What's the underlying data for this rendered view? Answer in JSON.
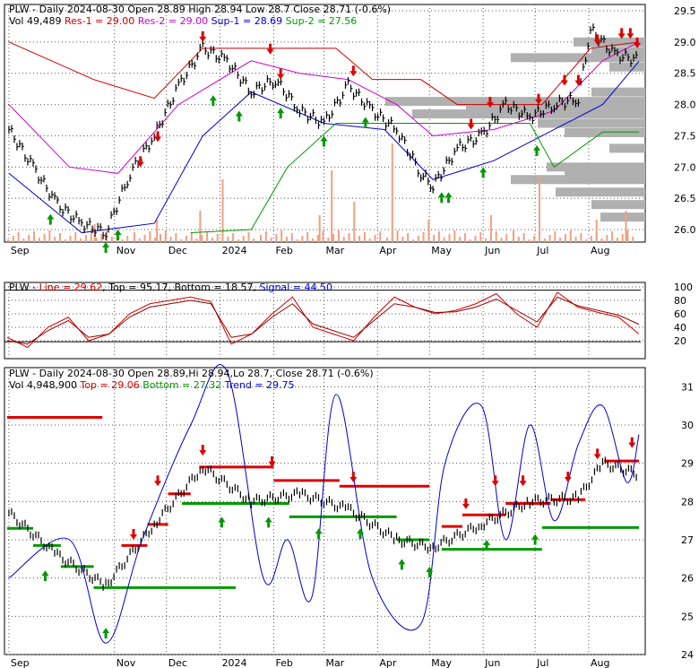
{
  "symbol": "PLW",
  "colors": {
    "frame": "#000000",
    "grid": "#555555",
    "price": "#000000",
    "res1": "#cc0000",
    "res2": "#cc00cc",
    "sup1": "#0000cc",
    "sup2": "#009900",
    "volume": "#f0a080",
    "profile": "#b0b0b0",
    "up_arrow": "#009900",
    "down_arrow": "#dd0000",
    "line": "#cc0000",
    "signal": "#990000",
    "trend": "#0000cc",
    "top": "#dd0000",
    "bottom": "#009900"
  },
  "panels": {
    "top": {
      "header_line1": [
        {
          "text": "PLW - Daily 2024-08-30 Open 28.89  High 28.94  Low 28.7  Close 28.71 (-0.6%)",
          "color": "#000000"
        }
      ],
      "header_line2": [
        {
          "text": "Vol 49,489",
          "color": "#000000"
        },
        {
          "text": "Res-1 = 29.00",
          "color": "#cc0000"
        },
        {
          "text": "Res-2 = 29.00",
          "color": "#cc00cc"
        },
        {
          "text": "Sup-1 = 28.69",
          "color": "#0000cc"
        },
        {
          "text": "Sup-2 = 27.56",
          "color": "#009900"
        }
      ],
      "y_ticks": [
        "29.5",
        "29.0",
        "28.5",
        "28.0",
        "27.5",
        "27.0",
        "26.5",
        "26.0"
      ]
    },
    "middle": {
      "header": [
        {
          "text": "PLW - ",
          "color": "#000000"
        },
        {
          "text": "Line = 29.62",
          "color": "#cc0000"
        },
        {
          "text": ", Top = 95.17, Bottom = 18.57, ",
          "color": "#000000"
        },
        {
          "text": "Signal = 44.50",
          "color": "#0000cc"
        }
      ],
      "y_ticks": [
        "100",
        "80",
        "60",
        "40",
        "20"
      ]
    },
    "bottom": {
      "header_line1": [
        {
          "text": "PLW - Daily 2024-08-30 Open 28.89,Hi 28.94,Lo 28.7, Close 28.71 (-0.6%)",
          "color": "#000000"
        }
      ],
      "header_line2": [
        {
          "text": "Vol 4,948,900",
          "color": "#000000"
        },
        {
          "text": "Top = 29.06",
          "color": "#dd0000"
        },
        {
          "text": "Bottom = 27.32",
          "color": "#009900"
        },
        {
          "text": "Trend = 29.75",
          "color": "#0000cc"
        }
      ],
      "y_ticks": [
        "31",
        "30",
        "29",
        "28",
        "27",
        "26",
        "25",
        "24"
      ]
    }
  },
  "x_ticks": [
    "Sep",
    "Nov",
    "Dec",
    "2024",
    "Feb",
    "Mar",
    "Apr",
    "May",
    "Jun",
    "Jul",
    "Aug"
  ],
  "chart_data": [
    {
      "type": "line",
      "title": "PLW - Daily 2024-08-30",
      "x_start": "2023-08-31",
      "x_end": "2024-08-30",
      "ylim": [
        25.8,
        29.6
      ],
      "series": [
        {
          "name": "Close",
          "points": [
            [
              "2023-09-01",
              27.6
            ],
            [
              "2023-09-15",
              27.0
            ],
            [
              "2023-09-29",
              26.4
            ],
            [
              "2023-10-13",
              26.1
            ],
            [
              "2023-10-27",
              25.95
            ],
            [
              "2023-11-10",
              26.9
            ],
            [
              "2023-11-24",
              27.5
            ],
            [
              "2023-12-08",
              28.3
            ],
            [
              "2023-12-22",
              28.9
            ],
            [
              "2024-01-05",
              28.7
            ],
            [
              "2024-01-19",
              28.2
            ],
            [
              "2024-02-02",
              28.4
            ],
            [
              "2024-02-16",
              27.9
            ],
            [
              "2024-03-01",
              27.7
            ],
            [
              "2024-03-15",
              28.3
            ],
            [
              "2024-03-29",
              27.9
            ],
            [
              "2024-04-12",
              27.6
            ],
            [
              "2024-04-26",
              26.9
            ],
            [
              "2024-05-03",
              26.7
            ],
            [
              "2024-05-17",
              27.3
            ],
            [
              "2024-05-31",
              27.5
            ],
            [
              "2024-06-14",
              28.0
            ],
            [
              "2024-06-28",
              27.8
            ],
            [
              "2024-07-12",
              28.0
            ],
            [
              "2024-07-26",
              28.1
            ],
            [
              "2024-08-02",
              29.2
            ],
            [
              "2024-08-16",
              28.8
            ],
            [
              "2024-08-30",
              28.71
            ]
          ]
        },
        {
          "name": "Res-1",
          "points": [
            [
              "2023-09-01",
              29.0
            ],
            [
              "2023-10-20",
              28.4
            ],
            [
              "2023-11-24",
              28.1
            ],
            [
              "2023-12-22",
              28.9
            ],
            [
              "2024-03-08",
              28.9
            ],
            [
              "2024-03-29",
              28.4
            ],
            [
              "2024-04-26",
              28.4
            ],
            [
              "2024-05-17",
              28.0
            ],
            [
              "2024-07-05",
              28.0
            ],
            [
              "2024-08-02",
              28.9
            ],
            [
              "2024-08-30",
              29.0
            ]
          ]
        },
        {
          "name": "Res-2",
          "points": [
            [
              "2023-09-01",
              28.0
            ],
            [
              "2023-10-06",
              27.0
            ],
            [
              "2023-11-03",
              26.9
            ],
            [
              "2023-12-08",
              28.0
            ],
            [
              "2024-01-19",
              28.7
            ],
            [
              "2024-02-16",
              28.5
            ],
            [
              "2024-03-15",
              28.4
            ],
            [
              "2024-04-12",
              28.0
            ],
            [
              "2024-05-03",
              27.5
            ],
            [
              "2024-06-07",
              27.6
            ],
            [
              "2024-07-12",
              27.9
            ],
            [
              "2024-08-09",
              28.7
            ],
            [
              "2024-08-30",
              29.0
            ]
          ]
        },
        {
          "name": "Sup-1",
          "points": [
            [
              "2023-09-01",
              26.9
            ],
            [
              "2023-10-13",
              25.95
            ],
            [
              "2023-11-24",
              26.1
            ],
            [
              "2023-12-22",
              27.5
            ],
            [
              "2024-01-19",
              28.2
            ],
            [
              "2024-03-01",
              27.7
            ],
            [
              "2024-04-05",
              27.6
            ],
            [
              "2024-05-03",
              26.8
            ],
            [
              "2024-06-07",
              27.1
            ],
            [
              "2024-07-12",
              27.6
            ],
            [
              "2024-08-09",
              28.0
            ],
            [
              "2024-08-30",
              28.69
            ]
          ]
        },
        {
          "name": "Sup-2",
          "points": [
            [
              "2023-12-15",
              25.95
            ],
            [
              "2024-01-19",
              26.0
            ],
            [
              "2024-02-09",
              27.0
            ],
            [
              "2024-03-08",
              27.7
            ],
            [
              "2024-06-28",
              27.7
            ],
            [
              "2024-07-12",
              27.0
            ],
            [
              "2024-08-09",
              27.56
            ],
            [
              "2024-08-30",
              27.56
            ]
          ]
        }
      ]
    },
    {
      "type": "line",
      "title": "PLW - Line / Signal oscillator",
      "ylim": [
        0,
        100
      ],
      "series": [
        {
          "name": "Line",
          "values": [
            25,
            10,
            40,
            55,
            20,
            30,
            60,
            75,
            80,
            85,
            78,
            15,
            30,
            60,
            85,
            40,
            30,
            20,
            55,
            85,
            70,
            60,
            65,
            75,
            90,
            60,
            40,
            92,
            70,
            62,
            55,
            30
          ]
        },
        {
          "name": "Signal",
          "values": [
            20,
            15,
            35,
            50,
            25,
            30,
            55,
            70,
            75,
            80,
            75,
            25,
            30,
            55,
            75,
            45,
            35,
            25,
            50,
            75,
            70,
            62,
            63,
            70,
            82,
            65,
            48,
            85,
            72,
            65,
            58,
            44.5
          ]
        }
      ],
      "reference_lines": {
        "top": 95.17,
        "bottom": 18.57
      }
    },
    {
      "type": "line",
      "title": "PLW - Daily 2024-08-30 (Top / Bottom / Trend)",
      "ylim": [
        24,
        31.5
      ],
      "series": [
        {
          "name": "Price",
          "points": [
            [
              "2023-09-01",
              27.7
            ],
            [
              "2023-09-29",
              26.6
            ],
            [
              "2023-10-27",
              25.8
            ],
            [
              "2023-11-24",
              27.4
            ],
            [
              "2023-12-22",
              28.9
            ],
            [
              "2024-01-19",
              28.0
            ],
            [
              "2024-02-16",
              28.2
            ],
            [
              "2024-03-15",
              27.8
            ],
            [
              "2024-04-12",
              27.0
            ],
            [
              "2024-05-03",
              26.8
            ],
            [
              "2024-05-31",
              27.4
            ],
            [
              "2024-06-28",
              28.0
            ],
            [
              "2024-07-26",
              28.1
            ],
            [
              "2024-08-09",
              29.0
            ],
            [
              "2024-08-30",
              28.71
            ]
          ]
        },
        {
          "name": "Trend",
          "points": [
            [
              "2023-09-01",
              26.0
            ],
            [
              "2023-10-06",
              27.0
            ],
            [
              "2023-10-27",
              24.3
            ],
            [
              "2023-11-17",
              27.0
            ],
            [
              "2023-12-15",
              30.0
            ],
            [
              "2024-01-05",
              31.4
            ],
            [
              "2024-01-26",
              26.0
            ],
            [
              "2024-02-09",
              27.0
            ],
            [
              "2024-02-23",
              25.5
            ],
            [
              "2024-03-08",
              30.8
            ],
            [
              "2024-03-29",
              26.0
            ],
            [
              "2024-04-26",
              24.8
            ],
            [
              "2024-05-10",
              29.0
            ],
            [
              "2024-05-31",
              30.5
            ],
            [
              "2024-06-14",
              27.0
            ],
            [
              "2024-06-28",
              30.0
            ],
            [
              "2024-07-12",
              27.5
            ],
            [
              "2024-07-26",
              29.5
            ],
            [
              "2024-08-09",
              30.5
            ],
            [
              "2024-08-23",
              28.5
            ],
            [
              "2024-08-30",
              29.75
            ]
          ]
        }
      ],
      "levels": {
        "top": 29.06,
        "bottom": 27.32,
        "trend": 29.75
      }
    }
  ]
}
